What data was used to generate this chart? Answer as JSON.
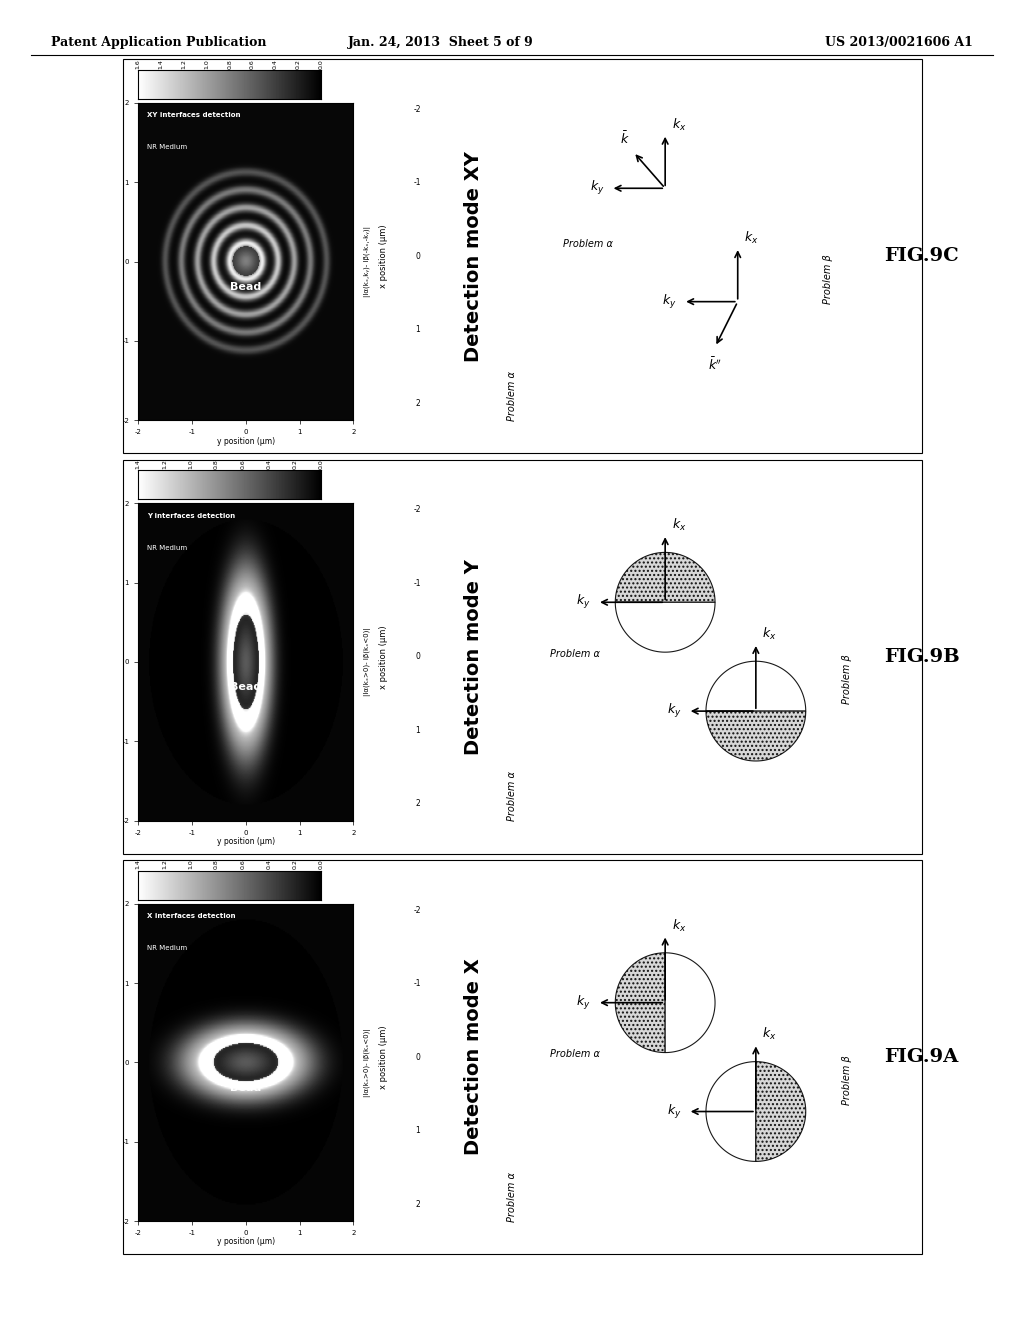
{
  "header_left": "Patent Application Publication",
  "header_center": "Jan. 24, 2013  Sheet 5 of 9",
  "header_right": "US 2013/0021606 A1",
  "panels": [
    {
      "fig_label": "FIG.9C",
      "detection_mode": "Detection mode XY",
      "vert_label": "XY interfaces detection\nNR Medium",
      "horiz_label": "|Iα(kₓ,kᵧ)- Iβ(-kₓ,-kᵧ)|",
      "colorbar_ticks": [
        "1.6",
        "1.4",
        "1.2",
        "1.0",
        "0.8",
        "0.6",
        "0.4",
        "0.2",
        "0.0"
      ],
      "image_type": "XY",
      "diagram_type": "XY"
    },
    {
      "fig_label": "FIG.9B",
      "detection_mode": "Detection mode Y",
      "vert_label": "Y interfaces detection\nNR Medium",
      "horiz_label": "|Iα(kₓ>0)- Iβ(kₓ<0)|",
      "colorbar_ticks": [
        "1.4",
        "1.2",
        "1.0",
        "0.8",
        "0.6",
        "0.4",
        "0.2",
        "0.0"
      ],
      "image_type": "Y",
      "diagram_type": "Y"
    },
    {
      "fig_label": "FIG.9A",
      "detection_mode": "Detection mode X",
      "vert_label": "X interfaces detection\nNR Medium",
      "horiz_label": "|Iα(kₓ>0)- Iβ(kₓ<0)|",
      "colorbar_ticks": [
        "1.4",
        "1.2",
        "1.0",
        "0.8",
        "0.6",
        "0.4",
        "0.2",
        "0.0"
      ],
      "image_type": "X",
      "diagram_type": "X"
    }
  ]
}
